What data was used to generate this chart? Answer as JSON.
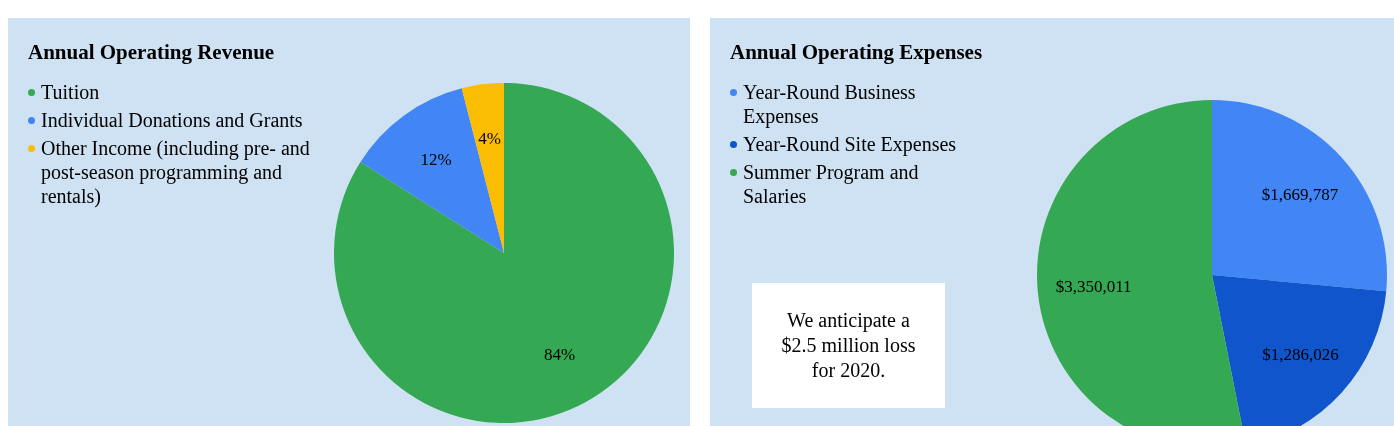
{
  "chart_data": [
    {
      "type": "pie",
      "title": "Annual Operating Revenue",
      "categories": [
        "Tuition",
        "Individual Donations and Grants",
        "Other Income (including pre- and post-season programming and rentals)"
      ],
      "values": [
        84,
        12,
        4
      ],
      "colors": [
        "#34a853",
        "#4285f4",
        "#fbbc04"
      ],
      "value_labels": [
        "84%",
        "12%",
        "4%"
      ],
      "legend": "top left"
    },
    {
      "type": "pie",
      "title": "Annual Operating Expenses",
      "categories": [
        "Year-Round Business Expenses",
        "Year-Round Site Expenses",
        "Summer Program and Salaries"
      ],
      "values": [
        1669787,
        1286026,
        3350011
      ],
      "colors": [
        "#4285f4",
        "#1155cc",
        "#34a853"
      ],
      "value_labels": [
        "$1,669,787",
        "$1,286,026",
        "$3,350,011"
      ],
      "legend": "top left",
      "annotations": [
        "We anticipate a $2.5 million loss for 2020."
      ]
    }
  ]
}
